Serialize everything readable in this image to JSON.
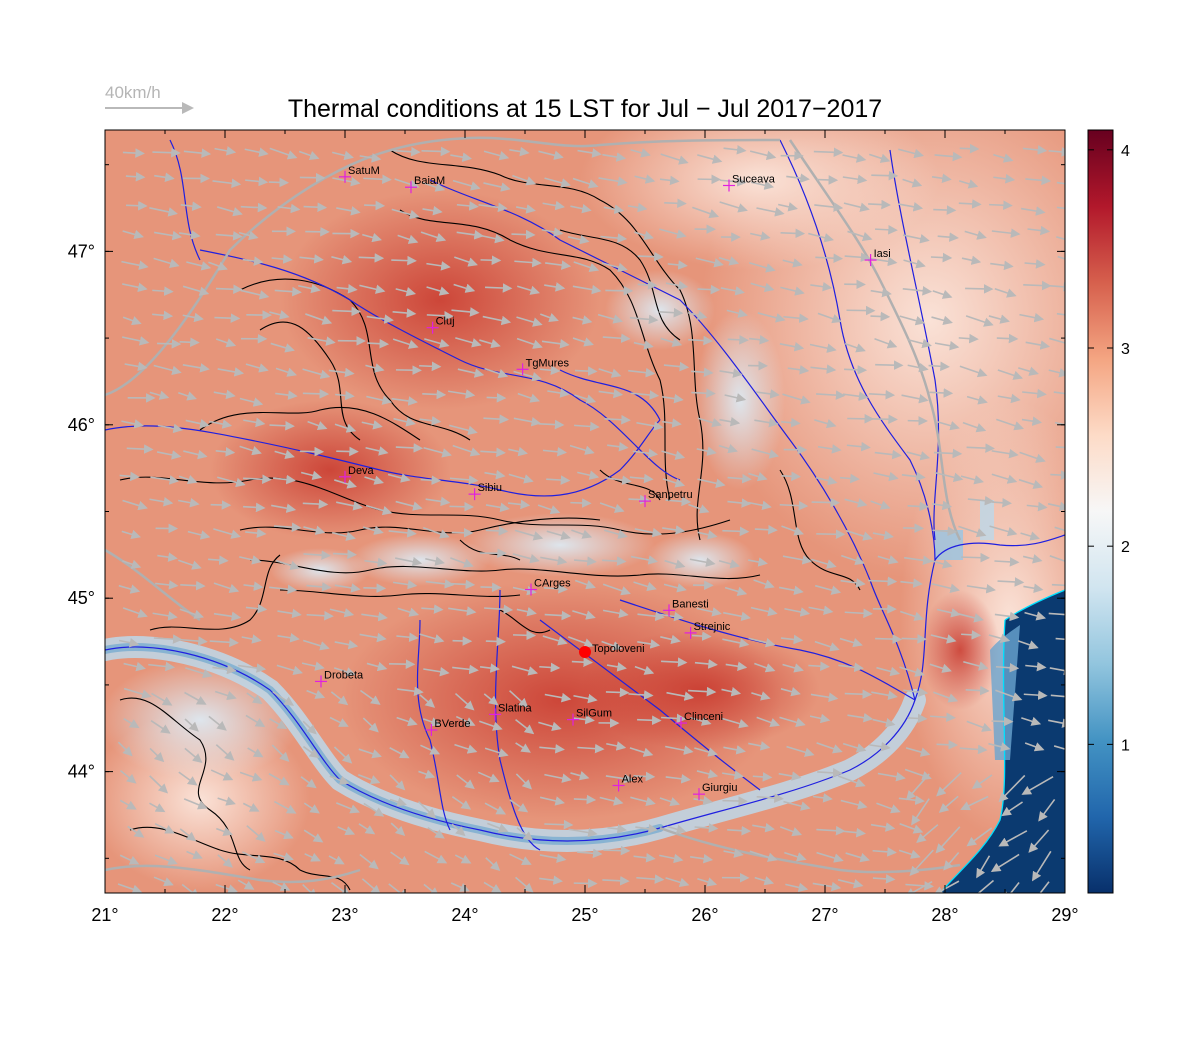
{
  "title": "Thermal conditions at 15 LST for Jul − Jul  2017−2017",
  "wind_legend": {
    "label": "40km/h"
  },
  "map": {
    "lon_range": [
      21,
      29
    ],
    "lat_range": [
      43.3,
      47.7
    ],
    "x_ticks": [
      "21°",
      "22°",
      "23°",
      "24°",
      "25°",
      "26°",
      "27°",
      "28°",
      "29°"
    ],
    "y_ticks": [
      "47°",
      "46°",
      "45°",
      "44°"
    ],
    "stations": [
      {
        "name": "SatuM",
        "lon": 23.0,
        "lat": 47.43
      },
      {
        "name": "BaiaM",
        "lon": 23.55,
        "lat": 47.37
      },
      {
        "name": "Suceava",
        "lon": 26.2,
        "lat": 47.38
      },
      {
        "name": "Iasi",
        "lon": 27.38,
        "lat": 46.95
      },
      {
        "name": "Cluj",
        "lon": 23.73,
        "lat": 46.56
      },
      {
        "name": "TgMures",
        "lon": 24.48,
        "lat": 46.32
      },
      {
        "name": "Deva",
        "lon": 23.0,
        "lat": 45.7
      },
      {
        "name": "Sibiu",
        "lon": 24.08,
        "lat": 45.6
      },
      {
        "name": "Sanpetru",
        "lon": 25.5,
        "lat": 45.56
      },
      {
        "name": "CArges",
        "lon": 24.55,
        "lat": 45.05
      },
      {
        "name": "Banesti",
        "lon": 25.7,
        "lat": 44.93
      },
      {
        "name": "Strejnic",
        "lon": 25.88,
        "lat": 44.8
      },
      {
        "name": "Drobeta",
        "lon": 22.8,
        "lat": 44.52
      },
      {
        "name": "Slatina",
        "lon": 24.25,
        "lat": 44.33
      },
      {
        "name": "SilGum",
        "lon": 24.9,
        "lat": 44.3
      },
      {
        "name": "Clinceni",
        "lon": 25.8,
        "lat": 44.28
      },
      {
        "name": "BVerde",
        "lon": 23.72,
        "lat": 44.24
      },
      {
        "name": "Alex",
        "lon": 25.28,
        "lat": 43.92
      },
      {
        "name": "Giurgiu",
        "lon": 25.95,
        "lat": 43.87
      }
    ],
    "highlight": {
      "name": "Topoloveni",
      "lon": 25.0,
      "lat": 44.69,
      "color": "#ff0000"
    }
  },
  "colorbar": {
    "min": 0.25,
    "max": 4.1,
    "ticks": [
      "1",
      "2",
      "3",
      "4"
    ],
    "tick_values": [
      1,
      2,
      3,
      4
    ],
    "colors": [
      "#08306b",
      "#2166ac",
      "#4393c3",
      "#92c5de",
      "#d1e5f0",
      "#f7f7f7",
      "#fddbc7",
      "#f4a582",
      "#d6604d",
      "#b2182b",
      "#67001f"
    ]
  }
}
